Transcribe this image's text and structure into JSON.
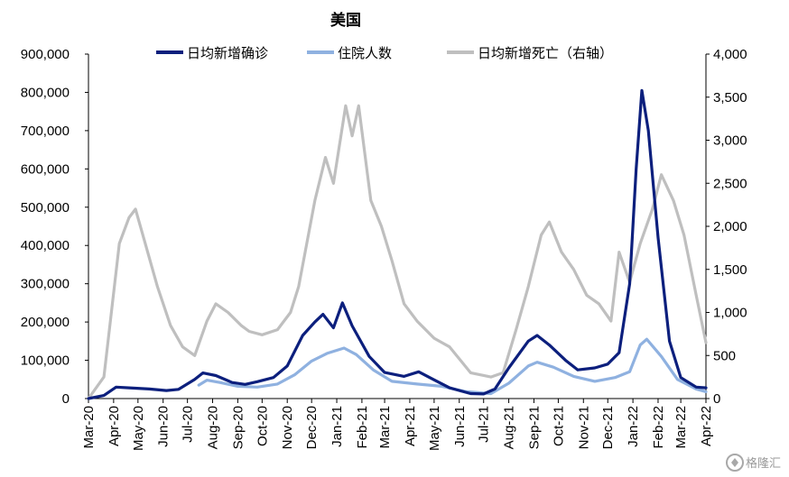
{
  "chart_data": {
    "type": "line",
    "title": "美国",
    "x": [
      "2020-03",
      "2020-04",
      "2020-05",
      "2020-06",
      "2020-07",
      "2020-08",
      "2020-09",
      "2020-10",
      "2020-11",
      "2020-12",
      "2021-01",
      "2021-02",
      "2021-03",
      "2021-04",
      "2021-05",
      "2021-06",
      "2021-07",
      "2021-08",
      "2021-09",
      "2021-10",
      "2021-11",
      "2021-12",
      "2022-01",
      "2022-02",
      "2022-03",
      "2022-04"
    ],
    "x_tick_labels": [
      "Mar-20",
      "Apr-20",
      "May-20",
      "Jun-20",
      "Jul-20",
      "Aug-20",
      "Sep-20",
      "Oct-20",
      "Nov-20",
      "Dec-20",
      "Jan-21",
      "Feb-21",
      "Mar-21",
      "Apr-21",
      "May-21",
      "Jun-21",
      "Jul-21",
      "Aug-21",
      "Sep-21",
      "Oct-21",
      "Nov-21",
      "Dec-21",
      "Jan-22",
      "Feb-22",
      "Mar-22",
      "Apr-22"
    ],
    "y_left": {
      "ylim": [
        0,
        900000
      ],
      "ticks": [
        0,
        100000,
        200000,
        300000,
        400000,
        500000,
        600000,
        700000,
        800000,
        900000
      ],
      "tick_labels": [
        "0",
        "100,000",
        "200,000",
        "300,000",
        "400,000",
        "500,000",
        "600,000",
        "700,000",
        "800,000",
        "900,000"
      ]
    },
    "y_right": {
      "ylim": [
        0,
        4000
      ],
      "ticks": [
        0,
        500,
        1000,
        1500,
        2000,
        2500,
        3000,
        3500,
        4000
      ],
      "tick_labels": [
        "0",
        "500",
        "1,000",
        "1,500",
        "2,000",
        "2,500",
        "3,000",
        "3,500",
        "4,000"
      ]
    },
    "series": [
      {
        "name": "日均新增确诊",
        "axis": "left",
        "color": "#0c1f7d",
        "points": [
          [
            "2020-03-01",
            0
          ],
          [
            "2020-03-20",
            8000
          ],
          [
            "2020-04-04",
            30000
          ],
          [
            "2020-04-20",
            28000
          ],
          [
            "2020-05-15",
            25000
          ],
          [
            "2020-06-05",
            21000
          ],
          [
            "2020-06-20",
            24000
          ],
          [
            "2020-07-10",
            50000
          ],
          [
            "2020-07-20",
            67000
          ],
          [
            "2020-08-05",
            60000
          ],
          [
            "2020-08-25",
            42000
          ],
          [
            "2020-09-10",
            37000
          ],
          [
            "2020-09-25",
            44000
          ],
          [
            "2020-10-15",
            55000
          ],
          [
            "2020-11-01",
            85000
          ],
          [
            "2020-11-20",
            165000
          ],
          [
            "2020-12-05",
            200000
          ],
          [
            "2020-12-15",
            220000
          ],
          [
            "2020-12-28",
            185000
          ],
          [
            "2021-01-08",
            250000
          ],
          [
            "2021-01-20",
            190000
          ],
          [
            "2021-02-10",
            110000
          ],
          [
            "2021-03-01",
            68000
          ],
          [
            "2021-03-25",
            58000
          ],
          [
            "2021-04-12",
            70000
          ],
          [
            "2021-04-30",
            50000
          ],
          [
            "2021-05-20",
            28000
          ],
          [
            "2021-06-15",
            13000
          ],
          [
            "2021-07-01",
            12000
          ],
          [
            "2021-07-15",
            25000
          ],
          [
            "2021-08-01",
            80000
          ],
          [
            "2021-08-25",
            150000
          ],
          [
            "2021-09-05",
            165000
          ],
          [
            "2021-09-20",
            140000
          ],
          [
            "2021-10-10",
            100000
          ],
          [
            "2021-10-25",
            75000
          ],
          [
            "2021-11-15",
            80000
          ],
          [
            "2021-12-01",
            90000
          ],
          [
            "2021-12-15",
            120000
          ],
          [
            "2021-12-28",
            300000
          ],
          [
            "2022-01-05",
            600000
          ],
          [
            "2022-01-12",
            805000
          ],
          [
            "2022-01-20",
            700000
          ],
          [
            "2022-02-01",
            420000
          ],
          [
            "2022-02-15",
            150000
          ],
          [
            "2022-03-01",
            55000
          ],
          [
            "2022-03-20",
            30000
          ],
          [
            "2022-04-01",
            28000
          ]
        ]
      },
      {
        "name": "住院人数",
        "axis": "left",
        "color": "#8fb1e0",
        "points": [
          [
            "2020-07-15",
            35000
          ],
          [
            "2020-07-25",
            48000
          ],
          [
            "2020-08-10",
            42000
          ],
          [
            "2020-09-01",
            32000
          ],
          [
            "2020-09-25",
            30000
          ],
          [
            "2020-10-20",
            38000
          ],
          [
            "2020-11-10",
            62000
          ],
          [
            "2020-12-01",
            98000
          ],
          [
            "2020-12-20",
            118000
          ],
          [
            "2021-01-10",
            132000
          ],
          [
            "2021-01-25",
            115000
          ],
          [
            "2021-02-15",
            75000
          ],
          [
            "2021-03-10",
            45000
          ],
          [
            "2021-04-10",
            38000
          ],
          [
            "2021-05-10",
            32000
          ],
          [
            "2021-06-10",
            18000
          ],
          [
            "2021-07-10",
            13000
          ],
          [
            "2021-08-01",
            40000
          ],
          [
            "2021-08-25",
            85000
          ],
          [
            "2021-09-05",
            95000
          ],
          [
            "2021-09-25",
            82000
          ],
          [
            "2021-10-20",
            58000
          ],
          [
            "2021-11-15",
            45000
          ],
          [
            "2021-12-10",
            55000
          ],
          [
            "2021-12-28",
            70000
          ],
          [
            "2022-01-10",
            140000
          ],
          [
            "2022-01-18",
            155000
          ],
          [
            "2022-02-05",
            110000
          ],
          [
            "2022-02-25",
            50000
          ],
          [
            "2022-03-20",
            25000
          ],
          [
            "2022-04-01",
            18000
          ]
        ]
      },
      {
        "name": "日均新增死亡（右轴）",
        "axis": "right",
        "color": "#bfbfbf",
        "points": [
          [
            "2020-03-01",
            0
          ],
          [
            "2020-03-20",
            250
          ],
          [
            "2020-04-08",
            1800
          ],
          [
            "2020-04-20",
            2100
          ],
          [
            "2020-04-28",
            2200
          ],
          [
            "2020-05-10",
            1800
          ],
          [
            "2020-05-25",
            1300
          ],
          [
            "2020-06-10",
            850
          ],
          [
            "2020-06-25",
            600
          ],
          [
            "2020-07-10",
            500
          ],
          [
            "2020-07-25",
            900
          ],
          [
            "2020-08-05",
            1100
          ],
          [
            "2020-08-20",
            1000
          ],
          [
            "2020-09-05",
            850
          ],
          [
            "2020-09-15",
            780
          ],
          [
            "2020-10-01",
            740
          ],
          [
            "2020-10-20",
            800
          ],
          [
            "2020-11-05",
            1000
          ],
          [
            "2020-11-15",
            1300
          ],
          [
            "2020-12-05",
            2300
          ],
          [
            "2020-12-18",
            2800
          ],
          [
            "2020-12-28",
            2500
          ],
          [
            "2021-01-12",
            3400
          ],
          [
            "2021-01-20",
            3050
          ],
          [
            "2021-01-28",
            3400
          ],
          [
            "2021-02-12",
            2300
          ],
          [
            "2021-02-25",
            2000
          ],
          [
            "2021-03-10",
            1600
          ],
          [
            "2021-03-25",
            1100
          ],
          [
            "2021-04-10",
            900
          ],
          [
            "2021-05-01",
            700
          ],
          [
            "2021-05-20",
            600
          ],
          [
            "2021-06-15",
            300
          ],
          [
            "2021-07-10",
            250
          ],
          [
            "2021-07-25",
            300
          ],
          [
            "2021-08-10",
            800
          ],
          [
            "2021-08-25",
            1300
          ],
          [
            "2021-09-10",
            1900
          ],
          [
            "2021-09-20",
            2050
          ],
          [
            "2021-10-05",
            1700
          ],
          [
            "2021-10-20",
            1500
          ],
          [
            "2021-11-05",
            1200
          ],
          [
            "2021-11-20",
            1100
          ],
          [
            "2021-12-05",
            900
          ],
          [
            "2021-12-15",
            1700
          ],
          [
            "2021-12-28",
            1350
          ],
          [
            "2022-01-10",
            1800
          ],
          [
            "2022-01-25",
            2200
          ],
          [
            "2022-02-05",
            2600
          ],
          [
            "2022-02-20",
            2300
          ],
          [
            "2022-03-05",
            1900
          ],
          [
            "2022-03-20",
            1200
          ],
          [
            "2022-04-01",
            650
          ]
        ]
      }
    ],
    "legend_placement": "top-center",
    "grid": false
  },
  "watermark": {
    "icon": "gelonghui-logo",
    "text": "格隆汇"
  }
}
